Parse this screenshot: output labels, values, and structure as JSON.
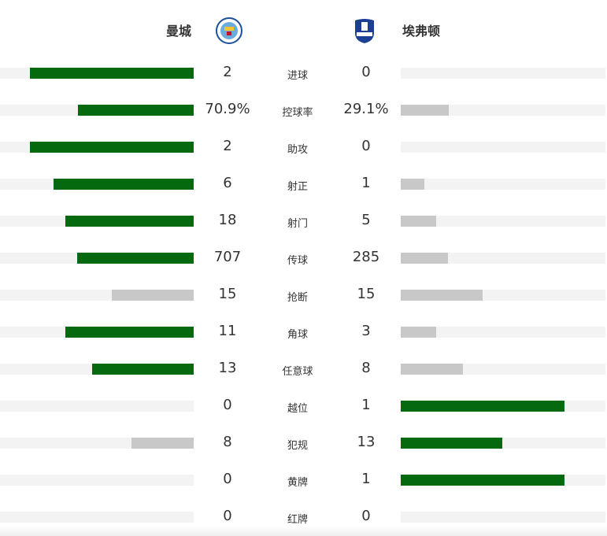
{
  "home": {
    "name": "曼城",
    "logo": "manchester-city-crest"
  },
  "away": {
    "name": "埃弗顿",
    "logo": "everton-crest"
  },
  "colors": {
    "leader": "#056a0f",
    "trailer": "#c8c8c8",
    "track": "#f3f3f3"
  },
  "stats": [
    {
      "label": "进球",
      "home": "2",
      "away": "0",
      "home_value": 2,
      "away_value": 0
    },
    {
      "label": "控球率",
      "home": "70.9%",
      "away": "29.1%",
      "home_value": 70.9,
      "away_value": 29.1
    },
    {
      "label": "助攻",
      "home": "2",
      "away": "0",
      "home_value": 2,
      "away_value": 0
    },
    {
      "label": "射正",
      "home": "6",
      "away": "1",
      "home_value": 6,
      "away_value": 1
    },
    {
      "label": "射门",
      "home": "18",
      "away": "5",
      "home_value": 18,
      "away_value": 5
    },
    {
      "label": "传球",
      "home": "707",
      "away": "285",
      "home_value": 707,
      "away_value": 285
    },
    {
      "label": "抢断",
      "home": "15",
      "away": "15",
      "home_value": 15,
      "away_value": 15
    },
    {
      "label": "角球",
      "home": "11",
      "away": "3",
      "home_value": 11,
      "away_value": 3
    },
    {
      "label": "任意球",
      "home": "13",
      "away": "8",
      "home_value": 13,
      "away_value": 8
    },
    {
      "label": "越位",
      "home": "0",
      "away": "1",
      "home_value": 0,
      "away_value": 1
    },
    {
      "label": "犯规",
      "home": "8",
      "away": "13",
      "home_value": 8,
      "away_value": 13
    },
    {
      "label": "黄牌",
      "home": "0",
      "away": "1",
      "home_value": 0,
      "away_value": 1
    },
    {
      "label": "红牌",
      "home": "0",
      "away": "0",
      "home_value": 0,
      "away_value": 0
    }
  ]
}
